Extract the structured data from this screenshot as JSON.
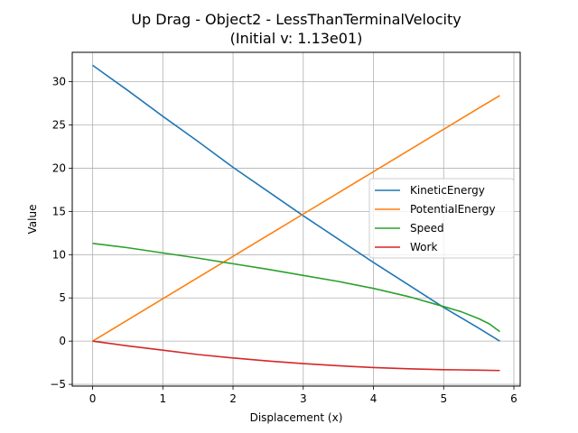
{
  "chart_data": {
    "type": "line",
    "title": "Up Drag - Object2 - LessThanTerminalVelocity",
    "subtitle": "(Initial v: 1.13e01)",
    "xlabel": "Displacement (x)",
    "ylabel": "Value",
    "xlim": [
      -0.29,
      6.09
    ],
    "ylim": [
      -5.2,
      33.4
    ],
    "xticks": [
      0,
      1,
      2,
      3,
      4,
      5,
      6
    ],
    "yticks": [
      -5,
      0,
      5,
      10,
      15,
      20,
      25,
      30
    ],
    "grid": true,
    "legend_position": "center-right",
    "series": [
      {
        "name": "KineticEnergy",
        "color": "#1f77b4",
        "x": [
          0,
          0.5,
          1,
          1.5,
          2,
          2.5,
          3,
          3.5,
          4,
          4.5,
          5,
          5.5,
          5.8
        ],
        "y": [
          31.9,
          29.0,
          26.0,
          23.1,
          20.1,
          17.3,
          14.5,
          11.8,
          9.1,
          6.5,
          3.9,
          1.5,
          0.0
        ]
      },
      {
        "name": "PotentialEnergy",
        "color": "#ff7f0e",
        "x": [
          0,
          0.5,
          1,
          1.5,
          2,
          2.5,
          3,
          3.5,
          4,
          4.5,
          5,
          5.5,
          5.8
        ],
        "y": [
          0.0,
          2.45,
          4.9,
          7.35,
          9.8,
          12.25,
          14.7,
          17.15,
          19.6,
          22.05,
          24.5,
          26.95,
          28.4
        ]
      },
      {
        "name": "Speed",
        "color": "#2ca02c",
        "x": [
          0,
          0.5,
          1,
          1.5,
          2,
          2.5,
          3,
          3.5,
          4,
          4.5,
          5,
          5.25,
          5.5,
          5.65,
          5.8
        ],
        "y": [
          11.3,
          10.8,
          10.2,
          9.6,
          8.95,
          8.3,
          7.6,
          6.9,
          6.1,
          5.15,
          4.0,
          3.4,
          2.6,
          2.0,
          1.1
        ]
      },
      {
        "name": "Work",
        "color": "#d62728",
        "x": [
          0,
          0.5,
          1,
          1.5,
          2,
          2.5,
          3,
          3.5,
          4,
          4.5,
          5,
          5.5,
          5.8
        ],
        "y": [
          0.0,
          -0.55,
          -1.05,
          -1.55,
          -1.95,
          -2.3,
          -2.6,
          -2.85,
          -3.05,
          -3.2,
          -3.3,
          -3.35,
          -3.4
        ]
      }
    ]
  }
}
